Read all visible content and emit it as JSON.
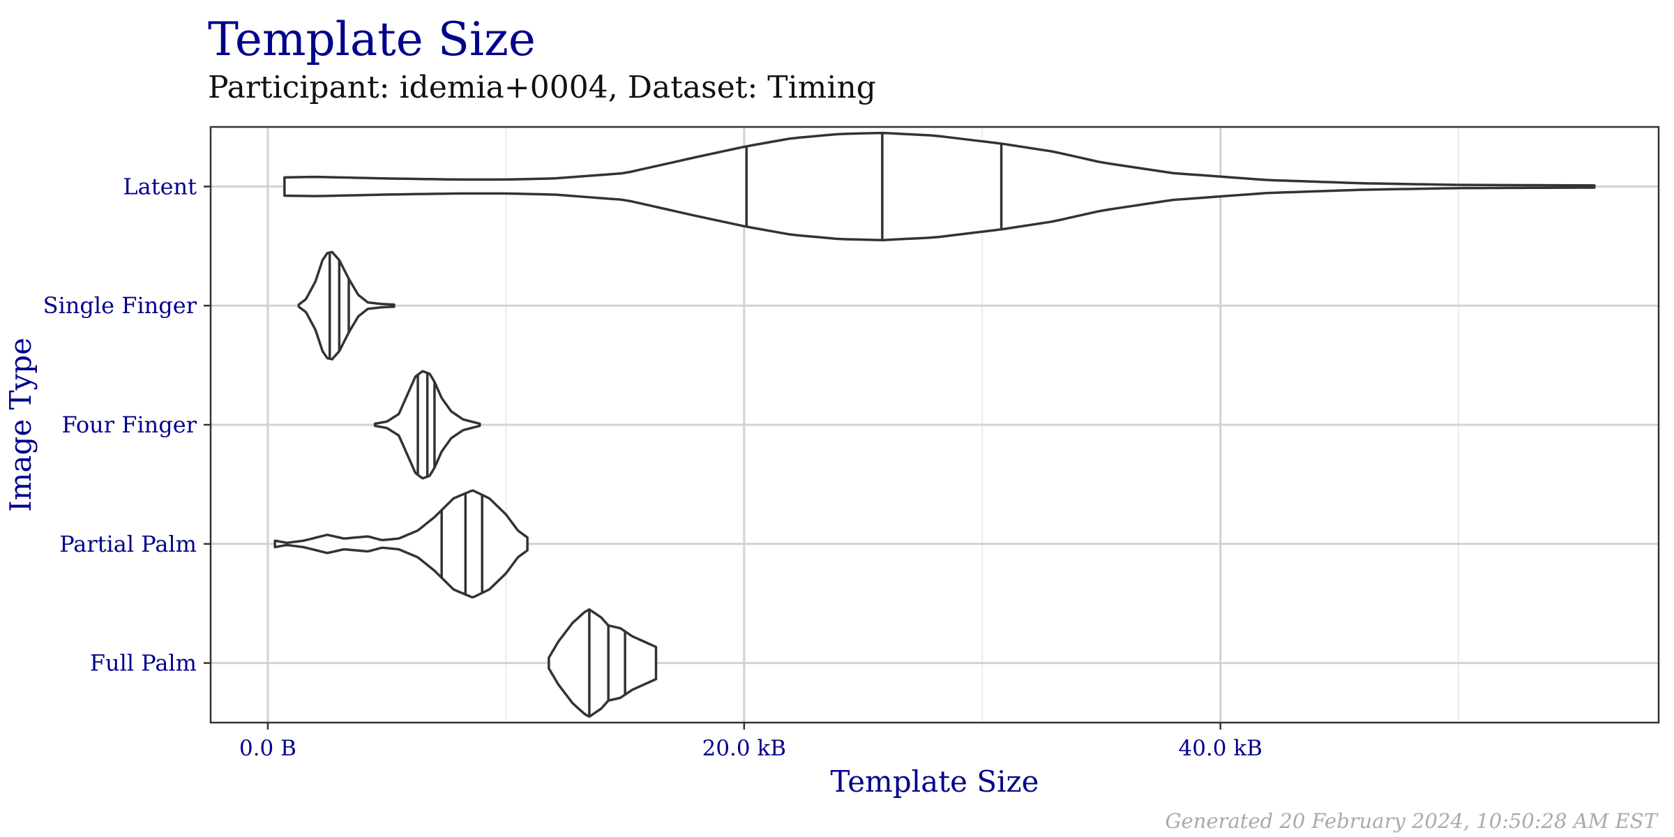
{
  "chart_data": {
    "type": "violin",
    "title": "Template Size",
    "subtitle": "Participant: idemia+0004, Dataset: Timing",
    "xlabel": "Template Size",
    "ylabel": "Image Type",
    "caption": "Generated 20 February 2024, 10:50:28 AM EST",
    "xlim": [
      -2.4,
      58.4
    ],
    "x_ticks": [
      0,
      20,
      40
    ],
    "x_tick_labels": [
      "0.0 B",
      "20.0 kB",
      "40.0 kB"
    ],
    "x_minor_ticks": [
      10,
      30,
      50
    ],
    "x_unit": "kB",
    "grid": true,
    "categories": [
      "Latent",
      "Single Finger",
      "Four Finger",
      "Partial Palm",
      "Full Palm"
    ],
    "series": [
      {
        "category": "Latent",
        "min": 0.7,
        "max": 55.7,
        "quartiles": [
          20.1,
          25.8,
          30.8
        ],
        "density": [
          [
            0.7,
            0.17
          ],
          [
            2,
            0.18
          ],
          [
            5,
            0.15
          ],
          [
            8,
            0.13
          ],
          [
            10,
            0.13
          ],
          [
            12,
            0.15
          ],
          [
            15,
            0.25
          ],
          [
            18,
            0.55
          ],
          [
            20.1,
            0.75
          ],
          [
            22,
            0.9
          ],
          [
            24,
            0.98
          ],
          [
            25.8,
            1.0
          ],
          [
            28,
            0.95
          ],
          [
            30.8,
            0.8
          ],
          [
            33,
            0.65
          ],
          [
            35,
            0.45
          ],
          [
            38,
            0.25
          ],
          [
            42,
            0.12
          ],
          [
            46,
            0.06
          ],
          [
            50,
            0.03
          ],
          [
            55.7,
            0.02
          ]
        ]
      },
      {
        "category": "Single Finger",
        "min": 1.3,
        "max": 5.3,
        "quartiles": [
          2.6,
          3.0,
          3.4
        ],
        "density": [
          [
            1.3,
            0.02
          ],
          [
            1.6,
            0.12
          ],
          [
            2.0,
            0.45
          ],
          [
            2.3,
            0.85
          ],
          [
            2.5,
            0.98
          ],
          [
            2.7,
            1.0
          ],
          [
            3.0,
            0.85
          ],
          [
            3.4,
            0.5
          ],
          [
            3.8,
            0.2
          ],
          [
            4.2,
            0.06
          ],
          [
            4.8,
            0.03
          ],
          [
            5.3,
            0.02
          ]
        ]
      },
      {
        "category": "Four Finger",
        "min": 4.5,
        "max": 8.9,
        "quartiles": [
          6.3,
          6.7,
          7.0
        ],
        "density": [
          [
            4.5,
            0.02
          ],
          [
            5.0,
            0.06
          ],
          [
            5.5,
            0.2
          ],
          [
            5.9,
            0.6
          ],
          [
            6.2,
            0.9
          ],
          [
            6.5,
            1.0
          ],
          [
            6.8,
            0.95
          ],
          [
            7.0,
            0.8
          ],
          [
            7.3,
            0.5
          ],
          [
            7.7,
            0.25
          ],
          [
            8.2,
            0.1
          ],
          [
            8.9,
            0.02
          ]
        ]
      },
      {
        "category": "Partial Palm",
        "min": 0.3,
        "max": 10.9,
        "quartiles": [
          7.3,
          8.3,
          9.0
        ],
        "density": [
          [
            0.3,
            0.06
          ],
          [
            0.8,
            0.02
          ],
          [
            1.5,
            0.06
          ],
          [
            2.5,
            0.17
          ],
          [
            3.2,
            0.1
          ],
          [
            4.2,
            0.14
          ],
          [
            4.8,
            0.07
          ],
          [
            5.5,
            0.1
          ],
          [
            6.3,
            0.25
          ],
          [
            7.0,
            0.5
          ],
          [
            7.8,
            0.85
          ],
          [
            8.6,
            1.0
          ],
          [
            9.3,
            0.85
          ],
          [
            10.0,
            0.55
          ],
          [
            10.5,
            0.25
          ],
          [
            10.9,
            0.12
          ]
        ]
      },
      {
        "category": "Full Palm",
        "min": 11.8,
        "max": 16.3,
        "quartiles": [
          13.5,
          14.3,
          15.0
        ],
        "density": [
          [
            11.8,
            0.1
          ],
          [
            12.2,
            0.4
          ],
          [
            12.8,
            0.75
          ],
          [
            13.3,
            0.95
          ],
          [
            13.5,
            1.0
          ],
          [
            14.0,
            0.85
          ],
          [
            14.3,
            0.7
          ],
          [
            14.8,
            0.65
          ],
          [
            15.3,
            0.5
          ],
          [
            15.8,
            0.4
          ],
          [
            16.3,
            0.3
          ]
        ]
      }
    ]
  }
}
